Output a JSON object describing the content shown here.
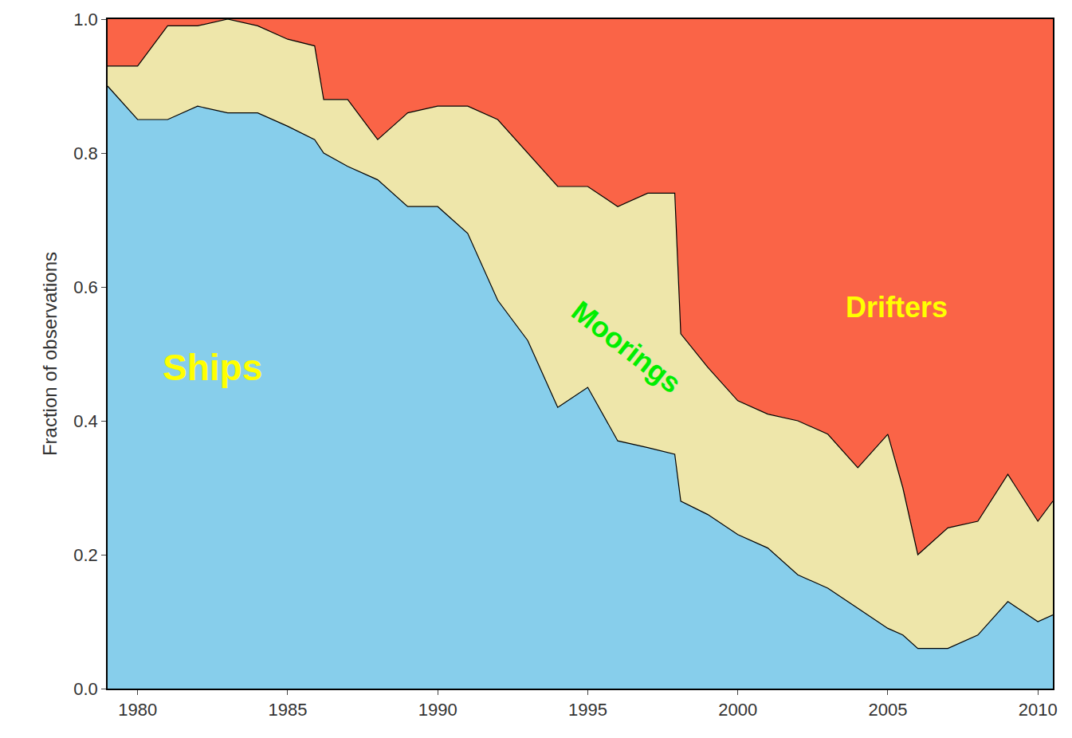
{
  "chart_data": {
    "type": "area",
    "stacked": true,
    "grid": false,
    "y_label": "Fraction of observations",
    "x": [
      1979,
      1980,
      1981,
      1982,
      1983,
      1984,
      1985,
      1985.9,
      1986.2,
      1987,
      1988,
      1989,
      1990,
      1991,
      1992,
      1993,
      1994,
      1995,
      1996,
      1997,
      1997.9,
      1998.1,
      1999,
      2000,
      2001,
      2002,
      2003,
      2004,
      2005,
      2005.5,
      2006,
      2007,
      2008,
      2009,
      2010,
      2010.5
    ],
    "series": [
      {
        "name": "Ships",
        "color": "#87ceeb",
        "values": [
          0.9,
          0.85,
          0.85,
          0.87,
          0.86,
          0.86,
          0.84,
          0.82,
          0.8,
          0.78,
          0.76,
          0.72,
          0.72,
          0.68,
          0.58,
          0.52,
          0.42,
          0.45,
          0.37,
          0.36,
          0.35,
          0.28,
          0.26,
          0.23,
          0.21,
          0.17,
          0.15,
          0.12,
          0.09,
          0.08,
          0.06,
          0.06,
          0.08,
          0.13,
          0.1,
          0.11
        ]
      },
      {
        "name": "Moorings",
        "color": "#eee6aa",
        "values": [
          0.03,
          0.08,
          0.14,
          0.12,
          0.14,
          0.13,
          0.13,
          0.14,
          0.08,
          0.1,
          0.06,
          0.14,
          0.15,
          0.19,
          0.27,
          0.28,
          0.33,
          0.3,
          0.35,
          0.38,
          0.39,
          0.25,
          0.22,
          0.2,
          0.2,
          0.23,
          0.23,
          0.21,
          0.29,
          0.22,
          0.14,
          0.18,
          0.17,
          0.19,
          0.15,
          0.17
        ]
      },
      {
        "name": "Drifters",
        "color": "#fa6447",
        "values": [
          0.07,
          0.07,
          0.01,
          0.01,
          0.0,
          0.01,
          0.03,
          0.04,
          0.12,
          0.12,
          0.18,
          0.14,
          0.13,
          0.13,
          0.15,
          0.2,
          0.25,
          0.25,
          0.28,
          0.26,
          0.26,
          0.47,
          0.52,
          0.57,
          0.59,
          0.6,
          0.62,
          0.67,
          0.62,
          0.7,
          0.8,
          0.76,
          0.75,
          0.68,
          0.75,
          0.72
        ]
      }
    ],
    "xlim": [
      1979,
      2010.5
    ],
    "xticks": [
      1980,
      1985,
      1990,
      1995,
      2000,
      2005,
      2010
    ],
    "ylim": [
      0,
      1
    ],
    "yticks": [
      {
        "value": 0,
        "label": "0.0"
      },
      0.2,
      0.4,
      0.6,
      0.8,
      {
        "value": 1,
        "label": "1.0"
      }
    ]
  }
}
